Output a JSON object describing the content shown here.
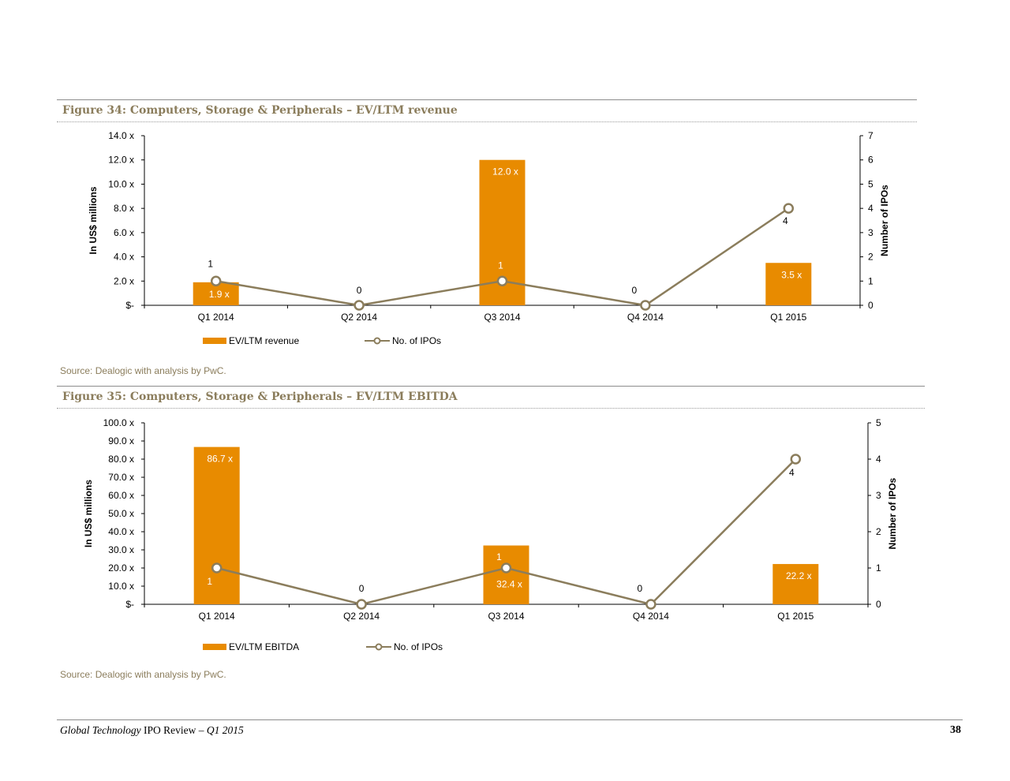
{
  "colors": {
    "bar": "#e88b00",
    "line": "#8b7d5c",
    "title": "#8b7d5c"
  },
  "figures": [
    {
      "title": "Figure 34: Computers, Storage & Peripherals – EV/LTM revenue",
      "source": "Source: Dealogic with analysis by PwC."
    },
    {
      "title": "Figure 35: Computers, Storage & Peripherals – EV/LTM EBITDA",
      "source": "Source: Dealogic with analysis by PwC."
    }
  ],
  "chart_data": [
    {
      "type": "bar",
      "categories": [
        "Q1 2014",
        "Q2 2014",
        "Q3 2014",
        "Q4 2014",
        "Q1 2015"
      ],
      "ylabel": "In US$ millions",
      "y2label": "Number of IPOs",
      "ylim": [
        0,
        14
      ],
      "y2lim": [
        0,
        7
      ],
      "yticks": [
        "$-",
        "2.0 x",
        "4.0 x",
        "6.0 x",
        "8.0 x",
        "10.0 x",
        "12.0 x",
        "14.0 x"
      ],
      "y2ticks": [
        "0",
        "1",
        "2",
        "3",
        "4",
        "5",
        "6",
        "7"
      ],
      "series": [
        {
          "name": "EV/LTM revenue",
          "kind": "bar",
          "axis": "left",
          "values": [
            1.9,
            null,
            12.0,
            null,
            3.5
          ],
          "labels": [
            "1.9 x",
            "",
            "12.0 x",
            "",
            "3.5 x"
          ]
        },
        {
          "name": "No. of IPOs",
          "kind": "line",
          "axis": "right",
          "values": [
            1,
            0,
            1,
            0,
            4
          ],
          "labels": [
            "1",
            "0",
            "1",
            "0",
            "4"
          ]
        }
      ],
      "legend_position": "bottom-left"
    },
    {
      "type": "bar",
      "categories": [
        "Q1 2014",
        "Q2 2014",
        "Q3 2014",
        "Q4 2014",
        "Q1 2015"
      ],
      "ylabel": "In US$ millions",
      "y2label": "Number of IPOs",
      "ylim": [
        0,
        100
      ],
      "y2lim": [
        0,
        5
      ],
      "yticks": [
        "$-",
        "10.0 x",
        "20.0 x",
        "30.0 x",
        "40.0 x",
        "50.0 x",
        "60.0 x",
        "70.0 x",
        "80.0 x",
        "90.0 x",
        "100.0 x"
      ],
      "y2ticks": [
        "0",
        "1",
        "2",
        "3",
        "4",
        "5"
      ],
      "series": [
        {
          "name": "EV/LTM EBITDA",
          "kind": "bar",
          "axis": "left",
          "values": [
            86.7,
            null,
            32.4,
            null,
            22.2
          ],
          "labels": [
            "86.7 x",
            "",
            "32.4 x",
            "",
            "22.2 x"
          ]
        },
        {
          "name": "No. of IPOs",
          "kind": "line",
          "axis": "right",
          "values": [
            1,
            0,
            1,
            0,
            4
          ],
          "labels": [
            "1",
            "0",
            "1",
            "0",
            "4"
          ]
        }
      ],
      "legend_position": "bottom-left"
    }
  ],
  "footer": {
    "title_italic": "Global Technology",
    "title_regular": " IPO Review – ",
    "period": "Q1 2015",
    "page": "38"
  }
}
